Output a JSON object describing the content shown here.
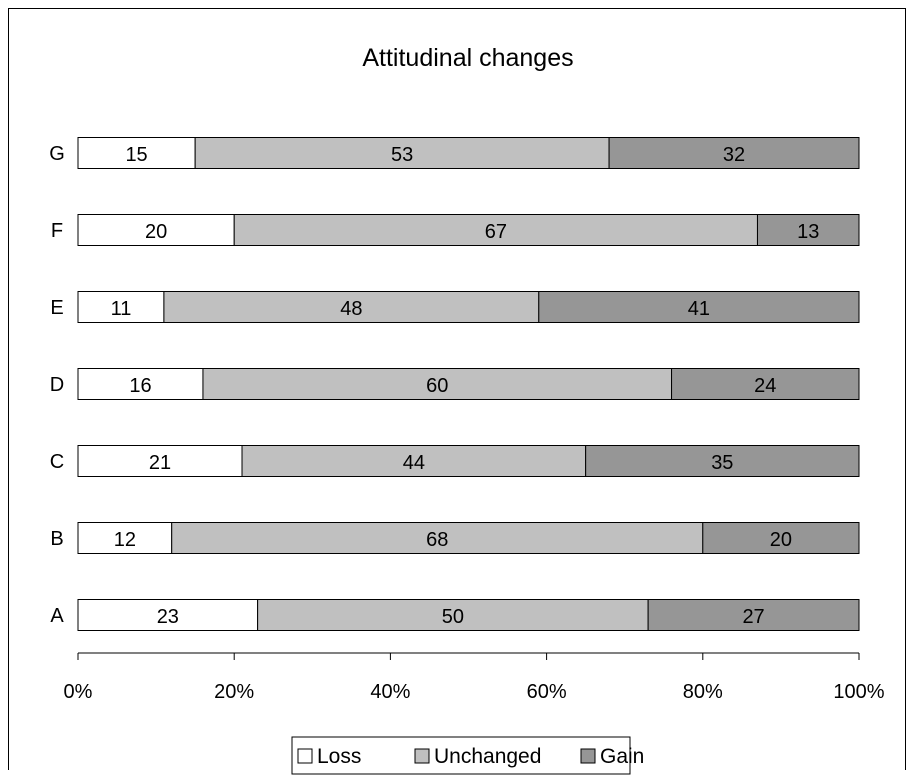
{
  "chart_data": {
    "type": "bar",
    "orientation": "horizontal",
    "stacked": "percent",
    "title": "Attitudinal changes",
    "categories": [
      "A",
      "B",
      "C",
      "D",
      "E",
      "F",
      "G"
    ],
    "series": [
      {
        "name": "Loss",
        "values": [
          23,
          12,
          21,
          16,
          11,
          20,
          15
        ],
        "color": "#ffffff"
      },
      {
        "name": "Unchanged",
        "values": [
          50,
          68,
          44,
          60,
          48,
          67,
          53
        ],
        "color": "#c0c0c0"
      },
      {
        "name": "Gain",
        "values": [
          27,
          20,
          35,
          24,
          41,
          13,
          32
        ],
        "color": "#969696"
      }
    ],
    "x_ticks": [
      "0%",
      "20%",
      "40%",
      "60%",
      "80%",
      "100%"
    ],
    "xlim": [
      0,
      100
    ],
    "grid": false,
    "legend_position": "bottom"
  }
}
